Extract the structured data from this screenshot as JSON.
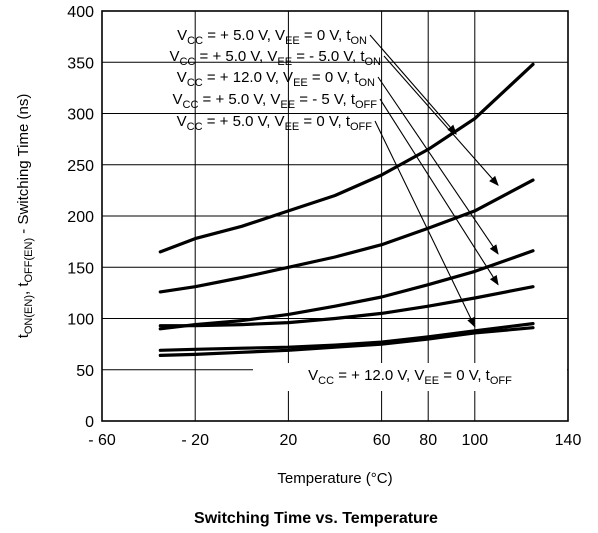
{
  "chart_data": {
    "type": "line",
    "title": "Switching Time vs. Temperature",
    "xlabel": "Temperature (°C)",
    "ylabel": {
      "parts": [
        {
          "t": "t",
          "sub": false
        },
        {
          "t": "ON(EN)",
          "sub": true
        },
        {
          "t": ", t",
          "sub": false
        },
        {
          "t": "OFF(EN)",
          "sub": true
        },
        {
          "t": " - Switching Time (ns)",
          "sub": false
        }
      ]
    },
    "xlim": [
      -60,
      140
    ],
    "ylim": [
      0,
      400
    ],
    "x_ticks": [
      -60,
      -20,
      20,
      60,
      80,
      100,
      140
    ],
    "x_tick_labels": [
      "- 60",
      "- 20",
      "20",
      "60",
      "80",
      "100",
      "140"
    ],
    "y_ticks": [
      0,
      50,
      100,
      150,
      200,
      250,
      300,
      350,
      400
    ],
    "y_tick_labels": [
      "0",
      "50",
      "100",
      "150",
      "200",
      "250",
      "300",
      "350",
      "400"
    ],
    "grid": true,
    "series": [
      {
        "label": [
          {
            "t": "V",
            "sub": false
          },
          {
            "t": "CC",
            "sub": true
          },
          {
            "t": " = + 5.0 V, V",
            "sub": false
          },
          {
            "t": "EE",
            "sub": true
          },
          {
            "t": " = 0 V, t",
            "sub": false
          },
          {
            "t": "ON",
            "sub": true
          }
        ],
        "x": [
          -35,
          -20,
          0,
          20,
          40,
          60,
          80,
          100,
          125
        ],
        "y": [
          165,
          178,
          190,
          205,
          220,
          240,
          265,
          295,
          348
        ],
        "arrow_to": [
          92,
          280
        ]
      },
      {
        "label": [
          {
            "t": "V",
            "sub": false
          },
          {
            "t": "CC",
            "sub": true
          },
          {
            "t": " = + 5.0 V, V",
            "sub": false
          },
          {
            "t": "EE",
            "sub": true
          },
          {
            "t": " = - 5.0 V, t",
            "sub": false
          },
          {
            "t": "ON",
            "sub": true
          }
        ],
        "x": [
          -35,
          -20,
          0,
          20,
          40,
          60,
          80,
          100,
          125
        ],
        "y": [
          126,
          131,
          140,
          150,
          160,
          172,
          188,
          205,
          235
        ],
        "arrow_to": [
          110,
          230
        ]
      },
      {
        "label": [
          {
            "t": "V",
            "sub": false
          },
          {
            "t": "CC",
            "sub": true
          },
          {
            "t": " = + 12.0 V, V",
            "sub": false
          },
          {
            "t": "EE",
            "sub": true
          },
          {
            "t": " = 0 V, t",
            "sub": false
          },
          {
            "t": "ON",
            "sub": true
          }
        ],
        "x": [
          -35,
          -20,
          0,
          20,
          40,
          60,
          80,
          100,
          125
        ],
        "y": [
          90,
          94,
          98,
          104,
          112,
          121,
          133,
          146,
          166
        ],
        "arrow_to": [
          110,
          163
        ]
      },
      {
        "label": [
          {
            "t": "V",
            "sub": false
          },
          {
            "t": "CC",
            "sub": true
          },
          {
            "t": " = + 5.0 V, V",
            "sub": false
          },
          {
            "t": "EE",
            "sub": true
          },
          {
            "t": " = - 5 V, t",
            "sub": false
          },
          {
            "t": "OFF",
            "sub": true
          }
        ],
        "x": [
          -35,
          -20,
          0,
          20,
          40,
          60,
          80,
          100,
          125
        ],
        "y": [
          93,
          93,
          94,
          96,
          100,
          105,
          112,
          120,
          131
        ],
        "arrow_to": [
          110,
          133
        ]
      },
      {
        "label": [
          {
            "t": "V",
            "sub": false
          },
          {
            "t": "CC",
            "sub": true
          },
          {
            "t": " = + 5.0 V, V",
            "sub": false
          },
          {
            "t": "EE",
            "sub": true
          },
          {
            "t": " = 0 V, t",
            "sub": false
          },
          {
            "t": "OFF",
            "sub": true
          }
        ],
        "x": [
          -35,
          -20,
          0,
          20,
          40,
          60,
          80,
          100,
          125
        ],
        "y": [
          69,
          70,
          71,
          72,
          74,
          77,
          82,
          88,
          95
        ],
        "arrow_to": [
          100,
          92
        ]
      },
      {
        "label": [
          {
            "t": "V",
            "sub": false
          },
          {
            "t": "CC",
            "sub": true
          },
          {
            "t": " = + 12.0 V, V",
            "sub": false
          },
          {
            "t": "EE",
            "sub": true
          },
          {
            "t": " = 0 V, t",
            "sub": false
          },
          {
            "t": "OFF",
            "sub": true
          }
        ],
        "x": [
          -35,
          -20,
          0,
          20,
          40,
          60,
          80,
          100,
          125
        ],
        "y": [
          64,
          65,
          67,
          69,
          72,
          75,
          80,
          86,
          91
        ],
        "arrow_to": null
      }
    ]
  }
}
